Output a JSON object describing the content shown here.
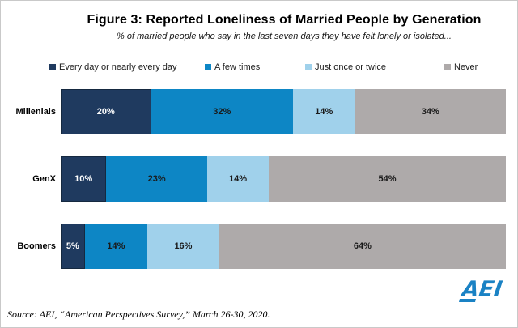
{
  "logo": {
    "text": "AEI"
  },
  "chart_data": {
    "type": "bar",
    "orientation": "horizontal",
    "stacked": true,
    "title": "Figure 3: Reported Loneliness of Married People by Generation",
    "subtitle": "% of married people who say in the last seven days they have felt lonely or isolated...",
    "categories": [
      "Millenials",
      "GenX",
      "Boomers"
    ],
    "series": [
      {
        "name": "Every day or nearly every day",
        "color": "#1F3A5F",
        "label_color": "#FFFFFF",
        "values": [
          20,
          10,
          5
        ]
      },
      {
        "name": "A few times",
        "color": "#0D86C5",
        "label_color": "#1A1A1A",
        "values": [
          32,
          23,
          14
        ]
      },
      {
        "name": "Just once or twice",
        "color": "#A0D1EB",
        "label_color": "#1A1A1A",
        "values": [
          14,
          14,
          16
        ]
      },
      {
        "name": "Never",
        "color": "#AEAAAA",
        "label_color": "#1A1A1A",
        "values": [
          34,
          54,
          64
        ]
      }
    ],
    "value_suffix": "%",
    "xlim": [
      0,
      100
    ],
    "legend_position": "top",
    "grid": false,
    "source": "Source: AEI, “American Perspectives Survey,” March 26-30, 2020.",
    "logo_color": "#1A82C4"
  }
}
